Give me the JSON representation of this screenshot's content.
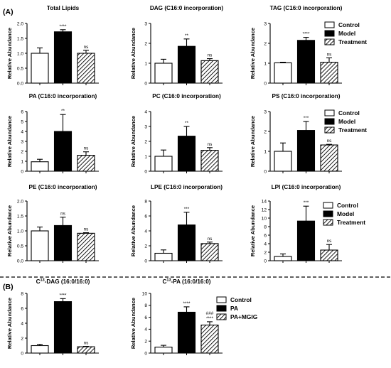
{
  "section_labels": [
    "(A)",
    "(B)"
  ],
  "legends": {
    "A": [
      "Control",
      "Model",
      "Treatment"
    ],
    "B": [
      "Control",
      "PA",
      "PA+MGIG"
    ]
  },
  "chart_data": [
    {
      "type": "bar",
      "title": "Total Lipids",
      "title_sup": "",
      "ylabel": "Relative Abundance",
      "yticks": [
        "0.0",
        "0.5",
        "1.0",
        "1.5",
        "2.0"
      ],
      "ylim": [
        0,
        2
      ],
      "categories": [
        "Control",
        "Model",
        "Treatment"
      ],
      "values": [
        1.0,
        1.72,
        1.0
      ],
      "errors": [
        0.18,
        0.07,
        0.1
      ],
      "significance": [
        "",
        "****",
        "ns"
      ]
    },
    {
      "type": "bar",
      "title": "DAG (C16:0 incorporation)",
      "title_sup": "",
      "ylabel": "Relative Abundance",
      "yticks": [
        "0",
        "1",
        "2",
        "3"
      ],
      "ylim": [
        0,
        3
      ],
      "categories": [
        "Control",
        "Model",
        "Treatment"
      ],
      "values": [
        1.0,
        1.85,
        1.13
      ],
      "errors": [
        0.2,
        0.37,
        0.1
      ],
      "significance": [
        "",
        "**",
        "ns"
      ]
    },
    {
      "type": "bar",
      "title": "TAG (C16:0 incorporation)",
      "title_sup": "",
      "ylabel": "Relative Abundance",
      "yticks": [
        "0",
        "1",
        "2",
        "3"
      ],
      "ylim": [
        0,
        3
      ],
      "categories": [
        "Control",
        "Model",
        "Treatment"
      ],
      "values": [
        1.02,
        2.15,
        1.05
      ],
      "errors": [
        0.03,
        0.15,
        0.22
      ],
      "significance": [
        "",
        "****",
        "ns"
      ]
    },
    {
      "type": "bar",
      "title": "PA (C16:0 incorporation)",
      "title_sup": "",
      "ylabel": "Relative Abundance",
      "yticks": [
        "0",
        "1",
        "2",
        "3",
        "4",
        "5",
        "6"
      ],
      "ylim": [
        0,
        6
      ],
      "categories": [
        "Control",
        "Model",
        "Treatment"
      ],
      "values": [
        0.95,
        4.0,
        1.6
      ],
      "errors": [
        0.25,
        1.7,
        0.35
      ],
      "significance": [
        "",
        "**",
        "ns"
      ]
    },
    {
      "type": "bar",
      "title": "PC (C16:0 incorporation)",
      "title_sup": "",
      "ylabel": "Relative Abundance",
      "yticks": [
        "0",
        "1",
        "2",
        "3",
        "4"
      ],
      "ylim": [
        0,
        4
      ],
      "categories": [
        "Control",
        "Model",
        "Treatment"
      ],
      "values": [
        1.0,
        2.35,
        1.4
      ],
      "errors": [
        0.42,
        0.65,
        0.18
      ],
      "significance": [
        "",
        "**",
        "ns"
      ]
    },
    {
      "type": "bar",
      "title": "PS (C16:0 incorporation)",
      "title_sup": "",
      "ylabel": "Relative Abundance",
      "yticks": [
        "0",
        "1",
        "2",
        "3"
      ],
      "ylim": [
        0,
        3
      ],
      "categories": [
        "Control",
        "Model",
        "Treatment"
      ],
      "values": [
        1.0,
        2.05,
        1.32
      ],
      "errors": [
        0.42,
        0.45,
        0.03
      ],
      "significance": [
        "",
        "***",
        "ns"
      ]
    },
    {
      "type": "bar",
      "title": "PE (C16:0 incorporation)",
      "title_sup": "",
      "ylabel": "Relative Abundance",
      "yticks": [
        "0.0",
        "0.5",
        "1.0",
        "1.5",
        "2.0"
      ],
      "ylim": [
        0,
        2
      ],
      "categories": [
        "Control",
        "Model",
        "Treatment"
      ],
      "values": [
        1.0,
        1.18,
        0.92
      ],
      "errors": [
        0.13,
        0.28,
        0.02
      ],
      "significance": [
        "",
        "ns",
        "ns"
      ]
    },
    {
      "type": "bar",
      "title": "LPE (C16:0 incorporation)",
      "title_sup": "",
      "ylabel": "Relative Abundance",
      "yticks": [
        "0",
        "2",
        "4",
        "6",
        "8"
      ],
      "ylim": [
        0,
        8
      ],
      "categories": [
        "Control",
        "Model",
        "Treatment"
      ],
      "values": [
        1.0,
        4.8,
        2.3
      ],
      "errors": [
        0.45,
        1.7,
        0.2
      ],
      "significance": [
        "",
        "***",
        "ns"
      ]
    },
    {
      "type": "bar",
      "title": "LPI (C16:0 incorporation)",
      "title_sup": "",
      "ylabel": "Relative Abundance",
      "yticks": [
        "0",
        "2",
        "4",
        "6",
        "8",
        "10",
        "12",
        "14"
      ],
      "ylim": [
        0,
        14
      ],
      "categories": [
        "Control",
        "Model",
        "Treatment"
      ],
      "values": [
        1.0,
        9.3,
        2.5
      ],
      "errors": [
        0.6,
        3.5,
        1.3
      ],
      "significance": [
        "",
        "***",
        "ns"
      ]
    },
    {
      "type": "bar",
      "title": "-DAG (16:0/16:0)",
      "title_sup": "13",
      "title_prefix": "C",
      "ylabel": "Relative Abundance",
      "yticks": [
        "0",
        "2",
        "4",
        "6",
        "8"
      ],
      "ylim": [
        0,
        8
      ],
      "categories": [
        "Control",
        "PA",
        "PA+MGIG"
      ],
      "values": [
        1.0,
        6.9,
        0.85
      ],
      "errors": [
        0.18,
        0.4,
        0.05
      ],
      "significance": [
        "",
        "****",
        "ns"
      ]
    },
    {
      "type": "bar",
      "title": "-PA (16:0/16:0)",
      "title_sup": "13",
      "title_prefix": "C",
      "ylabel": "Relative Abundance",
      "yticks": [
        "0",
        "2",
        "4",
        "6",
        "8",
        "10"
      ],
      "ylim": [
        0,
        10
      ],
      "categories": [
        "Control",
        "PA",
        "PA+MGIG"
      ],
      "values": [
        1.0,
        6.85,
        4.7
      ],
      "errors": [
        0.3,
        0.9,
        0.55
      ],
      "significance": [
        "",
        "****",
        "###\n****"
      ]
    }
  ]
}
